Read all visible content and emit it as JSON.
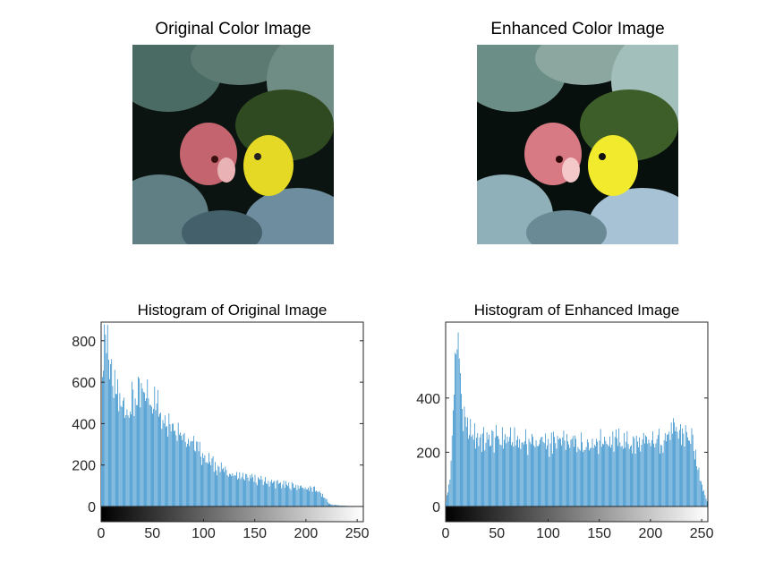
{
  "figure": {
    "titles": {
      "original_image": "Original Color Image",
      "enhanced_image": "Enhanced Color Image"
    },
    "images": {
      "original": {
        "icon": "fish-coral-photo-original"
      },
      "enhanced": {
        "icon": "fish-coral-photo-enhanced"
      }
    }
  },
  "chart_data": [
    {
      "type": "bar",
      "title": "Histogram of Original Image",
      "xlabel": "",
      "ylabel": "",
      "xlim": [
        0,
        255
      ],
      "ylim": [
        0,
        890
      ],
      "xticks": [
        0,
        50,
        100,
        150,
        200,
        250
      ],
      "yticks": [
        0,
        200,
        400,
        600,
        800
      ],
      "bar_color": "#0072BD",
      "colorbar": "gray",
      "bins": 256,
      "shape_points_x": [
        0,
        2,
        4,
        6,
        8,
        10,
        12,
        16,
        20,
        25,
        30,
        35,
        40,
        45,
        50,
        55,
        60,
        70,
        80,
        90,
        100,
        110,
        120,
        130,
        140,
        150,
        160,
        170,
        180,
        190,
        200,
        205,
        210,
        215,
        220,
        222,
        225,
        230,
        240,
        255
      ],
      "shape_points_y": [
        250,
        890,
        890,
        870,
        760,
        640,
        600,
        560,
        520,
        510,
        540,
        560,
        570,
        580,
        560,
        520,
        480,
        430,
        380,
        320,
        260,
        215,
        185,
        160,
        150,
        140,
        130,
        120,
        110,
        105,
        95,
        90,
        85,
        60,
        35,
        15,
        10,
        6,
        3,
        0
      ]
    },
    {
      "type": "bar",
      "title": "Histogram of Enhanced Image",
      "xlabel": "",
      "ylabel": "",
      "xlim": [
        0,
        255
      ],
      "ylim": [
        0,
        680
      ],
      "xticks": [
        0,
        50,
        100,
        150,
        200,
        250
      ],
      "yticks": [
        0,
        200,
        400
      ],
      "bar_color": "#0072BD",
      "colorbar": "gray",
      "bins": 256,
      "shape_points_x": [
        0,
        2,
        4,
        6,
        8,
        10,
        12,
        14,
        16,
        18,
        20,
        22,
        25,
        30,
        40,
        50,
        60,
        70,
        80,
        90,
        100,
        110,
        120,
        130,
        140,
        150,
        160,
        170,
        180,
        190,
        200,
        210,
        220,
        225,
        230,
        235,
        240,
        245,
        250,
        255
      ],
      "shape_points_y": [
        20,
        60,
        110,
        250,
        480,
        680,
        640,
        520,
        380,
        330,
        310,
        300,
        290,
        275,
        260,
        270,
        265,
        260,
        255,
        255,
        250,
        255,
        250,
        250,
        255,
        260,
        265,
        258,
        250,
        245,
        250,
        265,
        290,
        295,
        290,
        280,
        260,
        170,
        90,
        20
      ]
    }
  ]
}
